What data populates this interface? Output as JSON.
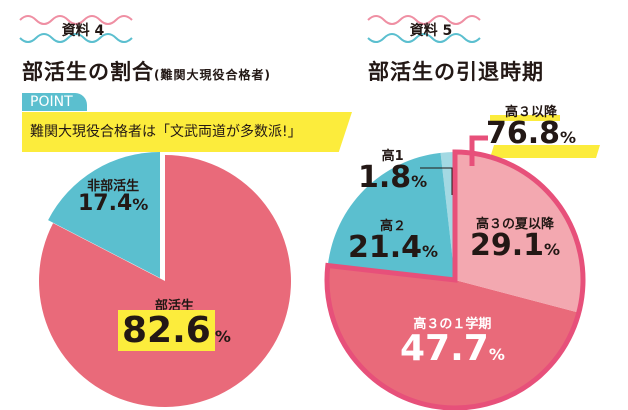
{
  "colors": {
    "pink": "#e96a7a",
    "lightpink": "#f3a8b0",
    "teal": "#5bbfcf",
    "lightteal": "#a3d9e3",
    "outline": "#e7507a",
    "yellow": "#fcec3c"
  },
  "left": {
    "tag": "資料 4",
    "title": "部活生の割合",
    "subtitle": "(難関大現役合格者)",
    "point_label": "POINT",
    "point_text": "難関大現役合格者は「文武両道が多数派!」"
  },
  "right": {
    "tag": "資料 5",
    "title": "部活生の引退時期",
    "group_label": "高３以降",
    "group_value": "76.8",
    "pct": "%"
  },
  "chart_data": [
    {
      "type": "pie",
      "title": "部活生の割合(難関大現役合格者)",
      "categories": [
        "部活生",
        "非部活生"
      ],
      "values": [
        82.6,
        17.4
      ],
      "value_labels": [
        "82.6",
        "17.4"
      ]
    },
    {
      "type": "pie",
      "title": "部活生の引退時期",
      "categories": [
        "高３の夏以降",
        "高３の１学期",
        "高２",
        "高1"
      ],
      "values": [
        29.1,
        47.7,
        21.4,
        1.8
      ],
      "value_labels": [
        "29.1",
        "47.7",
        "21.4",
        "1.8"
      ]
    }
  ]
}
